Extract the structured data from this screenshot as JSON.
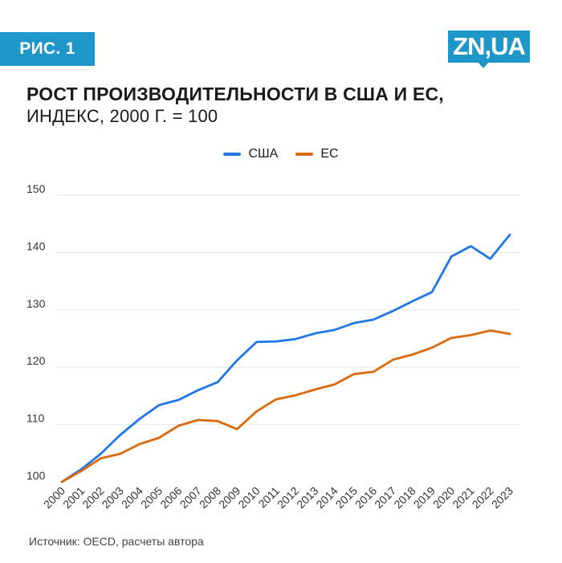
{
  "badge": {
    "label": "РИС. 1"
  },
  "logo": {
    "text": "ZN,UA"
  },
  "chart_data": {
    "type": "line",
    "title": "РОСТ ПРОИЗВОДИТЕЛЬНОСТИ В США И ЕС,",
    "subtitle": "ИНДЕКС, 2000 Г. = 100",
    "xlabel": "",
    "ylabel": "",
    "ylim": [
      100,
      150
    ],
    "yticks": [
      100,
      110,
      120,
      130,
      140,
      150
    ],
    "grid": true,
    "legend_position": "top-center",
    "categories": [
      "2000",
      "2001",
      "2002",
      "2003",
      "2004",
      "2005",
      "2006",
      "2007",
      "2008",
      "2009",
      "2010",
      "2011",
      "2012",
      "2013",
      "2014",
      "2015",
      "2016",
      "2017",
      "2018",
      "2019",
      "2020",
      "2021",
      "2022",
      "2023"
    ],
    "series": [
      {
        "name": "США",
        "color": "#1f77e8",
        "values": [
          100,
          102.2,
          104.9,
          108.2,
          111.0,
          113.4,
          114.3,
          116.0,
          117.4,
          121.2,
          124.4,
          124.5,
          124.9,
          125.9,
          126.5,
          127.7,
          128.3,
          129.8,
          131.5,
          133.1,
          139.3,
          141.1,
          138.9,
          143.1
        ]
      },
      {
        "name": "ЕС",
        "color": "#d96a0e",
        "values": [
          100,
          101.9,
          104.1,
          104.9,
          106.6,
          107.7,
          109.8,
          110.8,
          110.6,
          109.2,
          112.3,
          114.4,
          115.1,
          116.1,
          117.0,
          118.8,
          119.2,
          121.3,
          122.2,
          123.4,
          125.1,
          125.6,
          126.4,
          125.8
        ]
      }
    ]
  },
  "source": {
    "text": "Источник: OECD, расчеты автора"
  }
}
